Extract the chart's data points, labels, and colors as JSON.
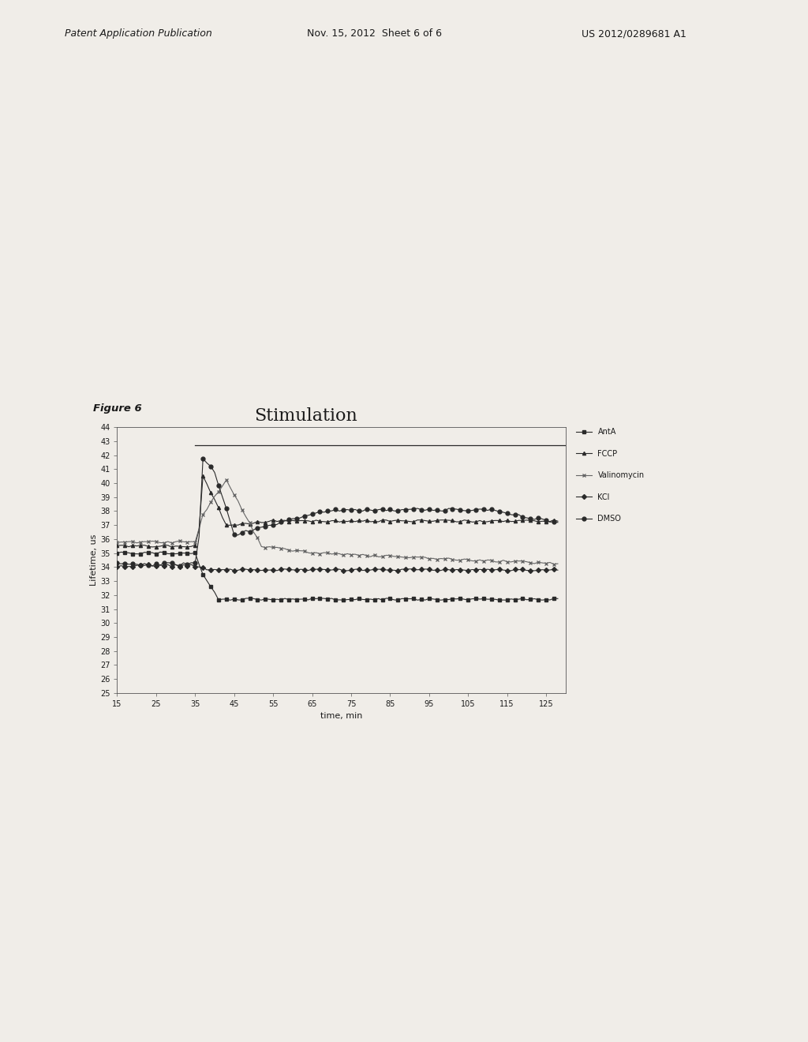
{
  "title": "Stimulation",
  "xlabel": "time, min",
  "ylabel": "Lifetime, us",
  "figure_label": "Figure 6",
  "xlim": [
    15,
    130
  ],
  "ylim": [
    25,
    44
  ],
  "yticks": [
    25,
    26,
    27,
    28,
    29,
    30,
    31,
    32,
    33,
    34,
    35,
    36,
    37,
    38,
    39,
    40,
    41,
    42,
    43,
    44
  ],
  "xticks": [
    15,
    25,
    35,
    45,
    55,
    65,
    75,
    85,
    95,
    105,
    115,
    125
  ],
  "stimulation_line_y": 42.7,
  "stimulation_line_xstart": 35,
  "legend_entries": [
    "AntA",
    "FCCP",
    "Valinomycin",
    "KCl",
    "DMSO"
  ],
  "background_color": "#f0ede8",
  "line_color": "#2d2d2d",
  "header_left": "Patent Application Publication",
  "header_mid": "Nov. 15, 2012  Sheet 6 of 6",
  "header_right": "US 2012/0289681 A1"
}
